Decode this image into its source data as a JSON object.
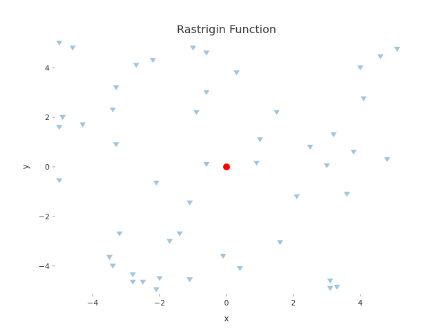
{
  "chart_data": {
    "type": "scatter",
    "title": "Rastrigin Function",
    "xlabel": "x",
    "ylabel": "y",
    "xlim": [
      -5.12,
      5.12
    ],
    "ylim": [
      -5.12,
      5.12
    ],
    "x_ticks": [
      -4,
      -2,
      0,
      2,
      4
    ],
    "y_ticks": [
      -4,
      -2,
      0,
      2,
      4
    ],
    "x_tick_labels": [
      "−4",
      "−2",
      "0",
      "2",
      "4"
    ],
    "y_tick_labels": [
      "−4",
      "−2",
      "0",
      "2",
      "4"
    ],
    "grid": false,
    "series": [
      {
        "marker": "triangle-down",
        "color": "#9ec4e0",
        "points": [
          [
            -5.0,
            5.0
          ],
          [
            -4.6,
            4.8
          ],
          [
            -2.7,
            4.1
          ],
          [
            -2.2,
            4.3
          ],
          [
            -1.0,
            4.8
          ],
          [
            -0.6,
            4.6
          ],
          [
            0.3,
            3.8
          ],
          [
            -3.3,
            3.2
          ],
          [
            -0.6,
            3.0
          ],
          [
            -3.4,
            2.3
          ],
          [
            -0.9,
            2.2
          ],
          [
            1.5,
            2.2
          ],
          [
            -4.9,
            2.0
          ],
          [
            -5.0,
            1.6
          ],
          [
            -4.3,
            1.7
          ],
          [
            1.0,
            1.1
          ],
          [
            -3.3,
            0.9
          ],
          [
            2.5,
            0.8
          ],
          [
            3.2,
            1.3
          ],
          [
            3.8,
            0.6
          ],
          [
            4.8,
            0.3
          ],
          [
            -0.6,
            0.1
          ],
          [
            0.9,
            0.15
          ],
          [
            3.0,
            0.05
          ],
          [
            -5.0,
            -0.55
          ],
          [
            -2.1,
            -0.65
          ],
          [
            2.1,
            -1.2
          ],
          [
            3.6,
            -1.1
          ],
          [
            -1.1,
            -1.45
          ],
          [
            -3.2,
            -2.7
          ],
          [
            -1.7,
            -3.0
          ],
          [
            -1.4,
            -2.7
          ],
          [
            1.6,
            -3.05
          ],
          [
            -3.5,
            -3.65
          ],
          [
            -3.4,
            -4.0
          ],
          [
            -0.1,
            -3.6
          ],
          [
            0.4,
            -4.1
          ],
          [
            -2.8,
            -4.35
          ],
          [
            -2.8,
            -4.65
          ],
          [
            -2.5,
            -4.65
          ],
          [
            -2.0,
            -4.5
          ],
          [
            -1.1,
            -4.55
          ],
          [
            -2.1,
            -4.95
          ],
          [
            3.1,
            -4.6
          ],
          [
            3.1,
            -4.9
          ],
          [
            3.3,
            -4.85
          ],
          [
            4.0,
            4.0
          ],
          [
            4.1,
            2.75
          ],
          [
            4.6,
            4.45
          ],
          [
            5.1,
            4.75
          ]
        ]
      },
      {
        "marker": "circle",
        "color": "#ff0000",
        "points": [
          [
            0.0,
            0.0
          ]
        ]
      }
    ]
  }
}
